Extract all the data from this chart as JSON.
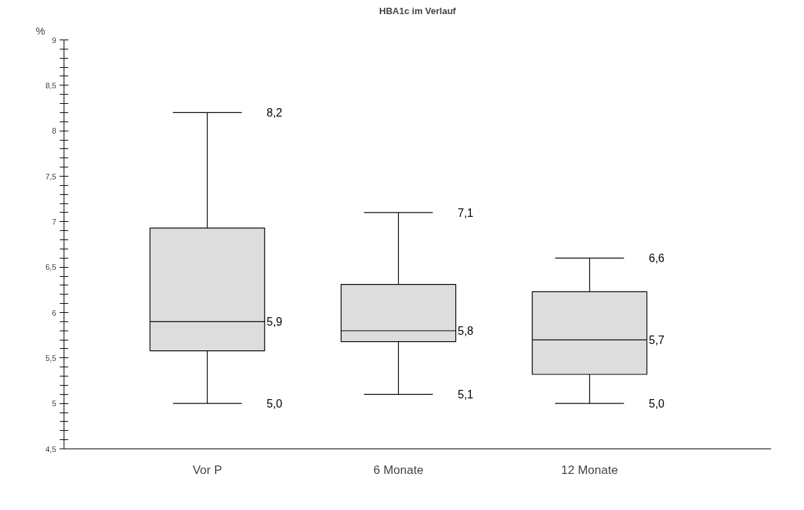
{
  "chart_data": {
    "type": "box",
    "title": "HBA1c im Verlauf",
    "ylabel": "%",
    "categories": [
      "Vor P",
      "6 Monate",
      "12 Monate"
    ],
    "boxes": [
      {
        "low": 5.0,
        "q1": 5.58,
        "median": 5.9,
        "q3": 6.93,
        "high": 8.2
      },
      {
        "low": 5.1,
        "q1": 5.68,
        "median": 5.8,
        "q3": 6.31,
        "high": 7.1
      },
      {
        "low": 5.0,
        "q1": 5.32,
        "median": 5.7,
        "q3": 6.23,
        "high": 6.6
      }
    ],
    "color": "#dddddd",
    "ylim": [
      4.5,
      9
    ],
    "yticks": [
      {
        "value": 4.5,
        "label": "4,5"
      },
      5,
      {
        "value": 5.5,
        "label": "5,5"
      },
      6,
      {
        "value": 6.5,
        "label": "6,5"
      },
      7,
      {
        "value": 7.5,
        "label": "7,5"
      },
      8,
      {
        "value": 8.5,
        "label": "8,5"
      },
      9
    ],
    "annotations": [
      "8,2",
      "5,9",
      "5,0",
      "7,1",
      "5,8",
      "5,1",
      "6,6",
      "5,7",
      "5,0"
    ],
    "grid": false
  }
}
